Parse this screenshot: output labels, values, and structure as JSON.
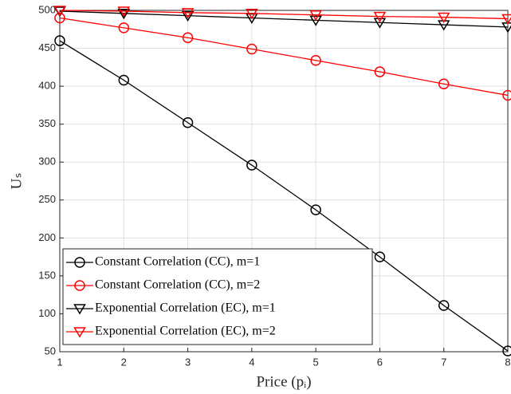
{
  "chart_data": {
    "type": "line",
    "x_label": "Price (pᵢ)",
    "y_label": "Uₛ",
    "x": [
      1,
      2,
      3,
      4,
      5,
      6,
      7,
      8
    ],
    "xlim": [
      1,
      8
    ],
    "xticks": [
      1,
      2,
      3,
      4,
      5,
      6,
      7,
      8
    ],
    "ylim": [
      50,
      500
    ],
    "yticks": [
      50,
      100,
      150,
      200,
      250,
      300,
      350,
      400,
      450,
      500
    ],
    "grid": true,
    "legend": "lower left",
    "series": [
      {
        "name": "Constant Correlation (CC), m=1",
        "color": "#000000",
        "marker": "o",
        "values": [
          460,
          408,
          352,
          296,
          237,
          175,
          111,
          51
        ]
      },
      {
        "name": "Constant Correlation (CC), m=2",
        "color": "#ff0000",
        "marker": "o",
        "values": [
          490,
          477,
          464,
          449,
          434,
          419,
          403,
          388
        ]
      },
      {
        "name": "Exponential Correlation (EC), m=1",
        "color": "#000000",
        "marker": "v",
        "values": [
          499,
          496,
          493,
          490,
          487,
          484,
          481,
          478
        ]
      },
      {
        "name": "Exponential Correlation (EC), m=2",
        "color": "#ff0000",
        "marker": "v",
        "values": [
          500,
          499,
          497,
          496,
          494,
          492,
          491,
          489
        ]
      }
    ]
  }
}
